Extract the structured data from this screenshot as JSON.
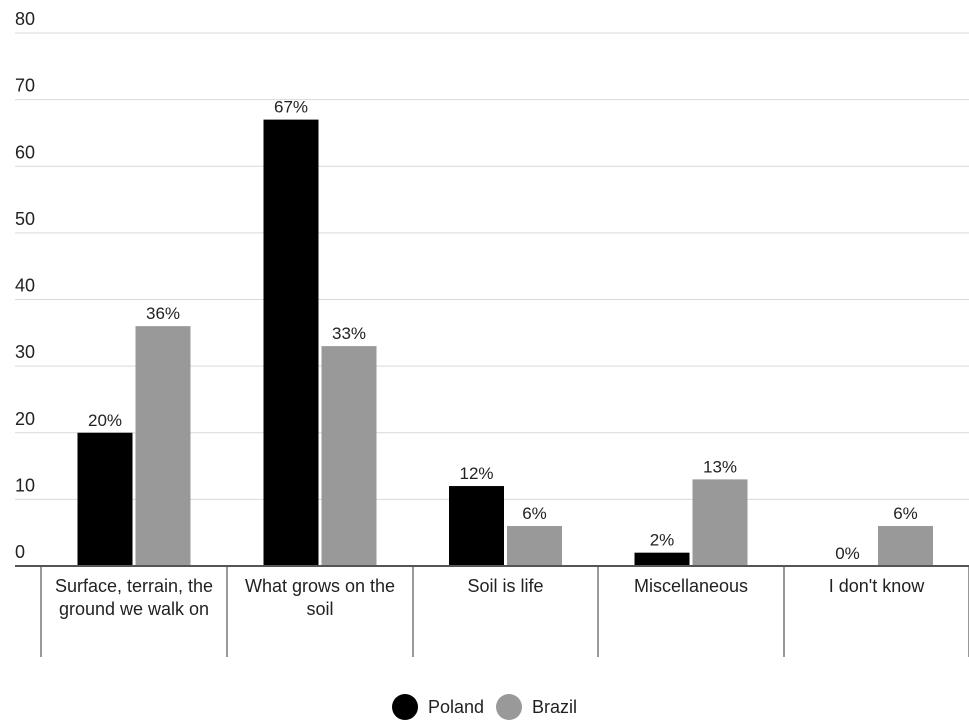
{
  "chart_data": {
    "type": "bar",
    "categories": [
      "Surface, terrain, the ground we walk on",
      "What grows on the soil",
      "Soil is life",
      "Miscellaneous",
      "I don't know"
    ],
    "series": [
      {
        "name": "Poland",
        "values": [
          20,
          67,
          12,
          2,
          0
        ],
        "labels": [
          "20%",
          "67%",
          "12%",
          "2%",
          "0%"
        ],
        "color": "#000000"
      },
      {
        "name": "Brazil",
        "values": [
          36,
          33,
          6,
          13,
          6
        ],
        "labels": [
          "36%",
          "33%",
          "6%",
          "13%",
          "6%"
        ],
        "color": "#999999"
      }
    ],
    "yticks": [
      "0",
      "10",
      "20",
      "30",
      "40",
      "50",
      "60",
      "70",
      "80"
    ],
    "ylim": [
      0,
      80
    ],
    "grid": true,
    "legend_position": "bottom-center"
  }
}
